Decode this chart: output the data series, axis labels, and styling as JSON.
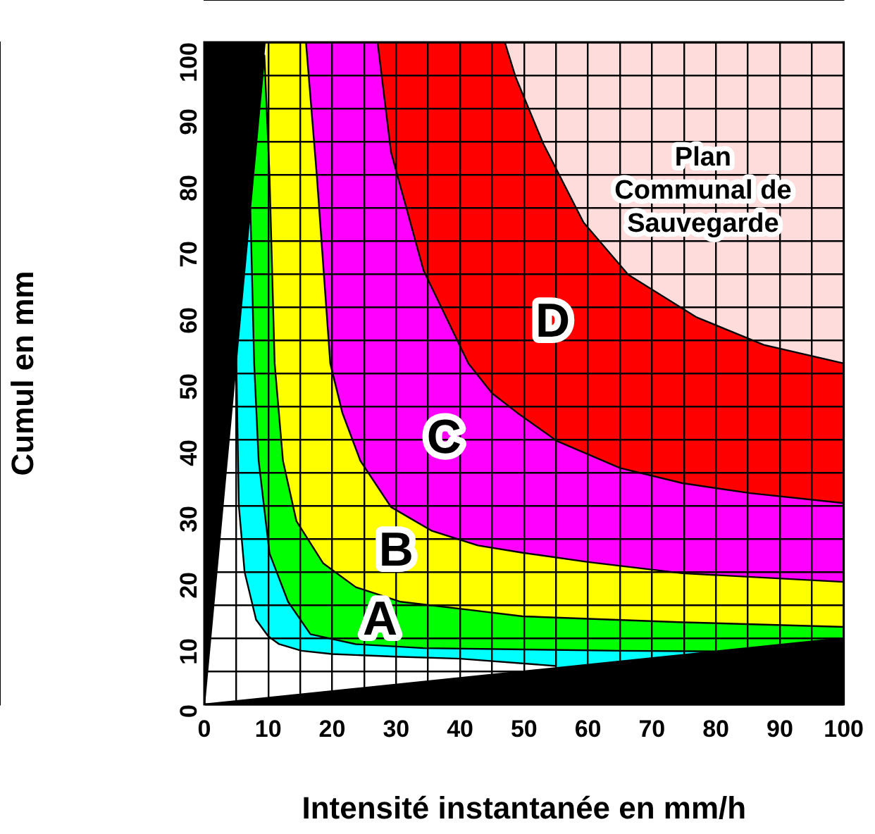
{
  "chart_data": {
    "type": "area",
    "xlabel": "Intensité instantanée en mm/h",
    "ylabel": "Cumul en mm",
    "xlim": [
      0,
      100
    ],
    "ylim": [
      0,
      100
    ],
    "xticks": [
      0,
      {
        "value": 5,
        "label": null
      },
      10,
      {
        "value": 15,
        "label": null
      },
      20,
      {
        "value": 25,
        "label": null
      },
      30,
      {
        "value": 35,
        "label": null
      },
      40,
      {
        "value": 45,
        "label": null
      },
      50,
      {
        "value": 55,
        "label": null
      },
      60,
      {
        "value": 65,
        "label": null
      },
      70,
      {
        "value": 75,
        "label": null
      },
      80,
      {
        "value": 85,
        "label": null
      },
      90,
      {
        "value": 95,
        "label": null
      },
      100
    ],
    "yticks": [
      0,
      {
        "value": 5,
        "label": null
      },
      10,
      {
        "value": 15,
        "label": null
      },
      20,
      {
        "value": 25,
        "label": null
      },
      30,
      {
        "value": 35,
        "label": null
      },
      40,
      {
        "value": 45,
        "label": null
      },
      50,
      {
        "value": 55,
        "label": null
      },
      60,
      {
        "value": 65,
        "label": null
      },
      70,
      {
        "value": 75,
        "label": null
      },
      80,
      {
        "value": 85,
        "label": null
      },
      90,
      {
        "value": 95,
        "label": null
      },
      100
    ],
    "grid": true,
    "legend": false,
    "series": [
      {
        "color": "#ffdcdc",
        "x": [
          47,
          100
        ],
        "values": [
          100,
          100
        ]
      },
      {
        "color": "#ff0000",
        "x": [
          27.1,
          47,
          48.7,
          53,
          59.3,
          66.3,
          76.9,
          87.5,
          100
        ],
        "values": [
          100,
          100,
          94.7,
          84.7,
          72.8,
          64.9,
          58.5,
          54.3,
          51.5
        ]
      },
      {
        "color": "#ff00ff",
        "x": [
          15.9,
          27.1,
          29.2,
          34.3,
          41.3,
          45,
          49,
          55.1,
          65,
          74.8,
          85.4,
          100
        ],
        "values": [
          100,
          100,
          83.4,
          65.5,
          51.5,
          47,
          44,
          39.8,
          35.7,
          33.4,
          31.9,
          30.4
        ]
      },
      {
        "color": "#ffff00",
        "x": [
          9.6,
          15.9,
          17.6,
          19.7,
          21.6,
          24.4,
          29.2,
          35.6,
          42.8,
          49.8,
          60,
          74.8,
          100
        ],
        "values": [
          100,
          100,
          79.8,
          51.5,
          44,
          36.8,
          29.8,
          26.2,
          24,
          22.9,
          21.5,
          19.8,
          18.5
        ]
      },
      {
        "color": "#00ff00",
        "x": [
          0,
          9.4,
          10.2,
          11,
          12.3,
          14.4,
          18.6,
          23.7,
          30.7,
          41.3,
          49.8,
          75,
          100
        ],
        "values": [
          0,
          98,
          79.8,
          51.5,
          36.8,
          27.7,
          21.3,
          17.7,
          15.5,
          14.3,
          13.3,
          12.4,
          11.7
        ]
      },
      {
        "color": "#00ffff",
        "x": [
          0,
          7.2,
          7.8,
          8.5,
          10.2,
          13.1,
          16.6,
          23.7,
          34.3,
          50,
          65,
          80
        ],
        "values": [
          0,
          75,
          51.5,
          36.8,
          22.8,
          15.5,
          10.6,
          9.1,
          8.5,
          8.3,
          8.1,
          8
        ]
      },
      {
        "color": "#ffffff",
        "x": [
          0,
          5,
          5.4,
          6.3,
          8.1,
          10,
          11.7,
          15.2,
          20,
          30,
          40,
          55
        ],
        "values": [
          0,
          52,
          30,
          20,
          12.8,
          10.3,
          9.1,
          8.1,
          7.6,
          7.2,
          6.9,
          5.8
        ]
      },
      {
        "color": "#000000",
        "x": [
          0,
          100
        ],
        "values": [
          0,
          10
        ]
      }
    ],
    "annotations": [
      "A",
      "B",
      "C",
      "D",
      "Plan\nCommunal de\nSauvegarde"
    ]
  }
}
